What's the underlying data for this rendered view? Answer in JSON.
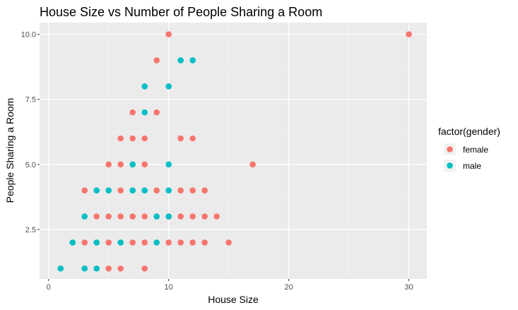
{
  "chart_data": {
    "type": "scatter",
    "title": "House Size vs Number of People Sharing a Room",
    "xlabel": "House Size",
    "ylabel": "People Sharing a Room",
    "xlim": [
      -0.75,
      31.5
    ],
    "ylim": [
      0.6,
      10.45
    ],
    "x_ticks": [
      0,
      10,
      20,
      30
    ],
    "x_tick_labels": [
      "0",
      "10",
      "20",
      "30"
    ],
    "x_minor_ticks": [
      5,
      15,
      25
    ],
    "y_ticks": [
      2.5,
      5.0,
      7.5,
      10.0
    ],
    "y_tick_labels": [
      "2.5",
      "5.0",
      "7.5",
      "10.0"
    ],
    "y_minor_ticks": [
      3.75,
      6.25,
      8.75
    ],
    "grid": true,
    "legend": {
      "title": "factor(gender)",
      "position": "right"
    },
    "series": [
      {
        "name": "female",
        "color": "#F8766D",
        "points": [
          [
            5,
            1
          ],
          [
            6,
            1
          ],
          [
            8,
            1
          ],
          [
            3,
            2
          ],
          [
            5,
            2
          ],
          [
            7,
            2
          ],
          [
            8,
            2
          ],
          [
            10,
            2
          ],
          [
            11,
            2
          ],
          [
            12,
            2
          ],
          [
            13,
            2
          ],
          [
            15,
            2
          ],
          [
            4,
            3
          ],
          [
            5,
            3
          ],
          [
            6,
            3
          ],
          [
            7,
            3
          ],
          [
            8,
            3
          ],
          [
            10,
            3
          ],
          [
            11,
            3
          ],
          [
            12,
            3
          ],
          [
            13,
            3
          ],
          [
            14,
            3
          ],
          [
            3,
            4
          ],
          [
            6,
            4
          ],
          [
            9,
            4
          ],
          [
            11,
            4
          ],
          [
            12,
            4
          ],
          [
            13,
            4
          ],
          [
            5,
            5
          ],
          [
            6,
            5
          ],
          [
            8,
            5
          ],
          [
            17,
            5
          ],
          [
            6,
            6
          ],
          [
            7,
            6
          ],
          [
            8,
            6
          ],
          [
            11,
            6
          ],
          [
            12,
            6
          ],
          [
            7,
            7
          ],
          [
            9,
            7
          ],
          [
            9,
            9
          ],
          [
            10,
            10
          ],
          [
            30,
            10
          ]
        ]
      },
      {
        "name": "male",
        "color": "#00BFC4",
        "points": [
          [
            1,
            1
          ],
          [
            3,
            1
          ],
          [
            4,
            1
          ],
          [
            2,
            2
          ],
          [
            4,
            2
          ],
          [
            6,
            2
          ],
          [
            9,
            2
          ],
          [
            3,
            3
          ],
          [
            9,
            3
          ],
          [
            10,
            3
          ],
          [
            4,
            4
          ],
          [
            5,
            4
          ],
          [
            7,
            4
          ],
          [
            8,
            4
          ],
          [
            10,
            4
          ],
          [
            7,
            5
          ],
          [
            10,
            5
          ],
          [
            8,
            7
          ],
          [
            8,
            8
          ],
          [
            10,
            8
          ],
          [
            11,
            9
          ],
          [
            12,
            9
          ]
        ]
      }
    ]
  }
}
